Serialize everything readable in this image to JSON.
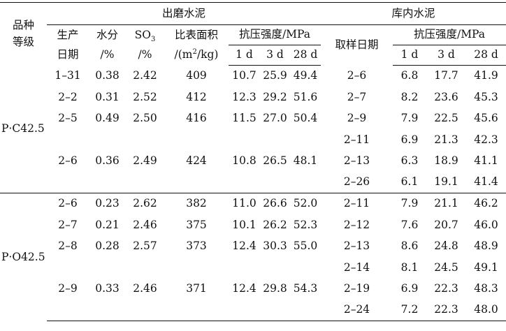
{
  "header": {
    "grade_label_l1": "品种",
    "grade_label_l2": "等级",
    "out_mill_title": "出磨水泥",
    "in_storage_title": "库内水泥",
    "prod_date_l1": "生产",
    "prod_date_l2": "日期",
    "moisture_l1": "水分",
    "moisture_l2": "/%",
    "so3_main": "SO",
    "so3_sub": "3",
    "so3_l2": "/%",
    "surface_l1": "比表面积",
    "surface_l2_pre": "/(m",
    "surface_l2_sup": "2",
    "surface_l2_post": "/kg)",
    "strength_out": "抗压强度/MPa",
    "sample_date": "取样日期",
    "strength_in": "抗压强度/MPa",
    "d1": "1 d",
    "d3": "3 d",
    "d28": "28 d"
  },
  "groups": [
    {
      "grade": "P·C42.5",
      "rows": [
        {
          "date": "1–31",
          "moisture": "0.38",
          "so3": "2.42",
          "surface": "409",
          "s1": "10.7",
          "s3": "25.9",
          "s28": "49.4",
          "sdate": "2–6",
          "k1": "6.8",
          "k3": "17.7",
          "k28": "41.9"
        },
        {
          "date": "2–2",
          "moisture": "0.31",
          "so3": "2.52",
          "surface": "412",
          "s1": "12.3",
          "s3": "29.2",
          "s28": "51.6",
          "sdate": "2–7",
          "k1": "8.2",
          "k3": "23.6",
          "k28": "45.3"
        },
        {
          "date": "2–5",
          "moisture": "0.49",
          "so3": "2.50",
          "surface": "416",
          "s1": "11.5",
          "s3": "27.0",
          "s28": "50.4",
          "sdate": "2–9",
          "k1": "7.9",
          "k3": "22.5",
          "k28": "45.6"
        },
        {
          "date": "",
          "moisture": "",
          "so3": "",
          "surface": "",
          "s1": "",
          "s3": "",
          "s28": "",
          "sdate": "2–11",
          "k1": "6.9",
          "k3": "21.3",
          "k28": "42.3"
        },
        {
          "date": "2–6",
          "moisture": "0.36",
          "so3": "2.49",
          "surface": "424",
          "s1": "10.8",
          "s3": "26.5",
          "s28": "48.1",
          "sdate": "2–13",
          "k1": "6.3",
          "k3": "18.9",
          "k28": "41.1"
        },
        {
          "date": "",
          "moisture": "",
          "so3": "",
          "surface": "",
          "s1": "",
          "s3": "",
          "s28": "",
          "sdate": "2–26",
          "k1": "6.1",
          "k3": "19.1",
          "k28": "41.4"
        }
      ]
    },
    {
      "grade": "P·O42.5",
      "rows": [
        {
          "date": "2–6",
          "moisture": "0.23",
          "so3": "2.62",
          "surface": "382",
          "s1": "11.0",
          "s3": "26.6",
          "s28": "52.0",
          "sdate": "2–11",
          "k1": "7.9",
          "k3": "21.1",
          "k28": "46.2"
        },
        {
          "date": "2–7",
          "moisture": "0.21",
          "so3": "2.46",
          "surface": "375",
          "s1": "10.1",
          "s3": "26.2",
          "s28": "52.3",
          "sdate": "2–12",
          "k1": "7.6",
          "k3": "20.7",
          "k28": "46.0"
        },
        {
          "date": "2–8",
          "moisture": "0.28",
          "so3": "2.57",
          "surface": "373",
          "s1": "12.4",
          "s3": "30.3",
          "s28": "55.0",
          "sdate": "2–13",
          "k1": "8.6",
          "k3": "24.8",
          "k28": "48.9"
        },
        {
          "date": "",
          "moisture": "",
          "so3": "",
          "surface": "",
          "s1": "",
          "s3": "",
          "s28": "",
          "sdate": "2–14",
          "k1": "8.1",
          "k3": "24.5",
          "k28": "49.1"
        },
        {
          "date": "2–9",
          "moisture": "0.33",
          "so3": "2.46",
          "surface": "371",
          "s1": "12.4",
          "s3": "29.8",
          "s28": "54.3",
          "sdate": "2–19",
          "k1": "6.9",
          "k3": "22.3",
          "k28": "48.3"
        },
        {
          "date": "",
          "moisture": "",
          "so3": "",
          "surface": "",
          "s1": "",
          "s3": "",
          "s28": "",
          "sdate": "2–24",
          "k1": "7.2",
          "k3": "22.3",
          "k28": "48.0"
        }
      ]
    }
  ]
}
